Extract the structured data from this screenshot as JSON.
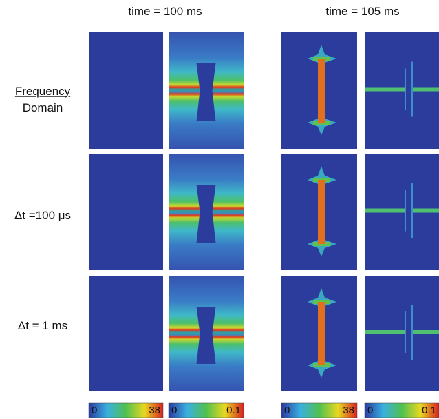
{
  "column_headers": [
    "time = 100 ms",
    "time = 105 ms"
  ],
  "row_labels": [
    [
      "Frequency",
      "Domain"
    ],
    [
      "Δt =100 μs"
    ],
    [
      "Δt = 1 ms"
    ]
  ],
  "colorbars": [
    [
      "0",
      "38"
    ],
    [
      "0",
      "0.1"
    ],
    [
      "0",
      "38"
    ],
    [
      "0",
      "0.1"
    ]
  ]
}
